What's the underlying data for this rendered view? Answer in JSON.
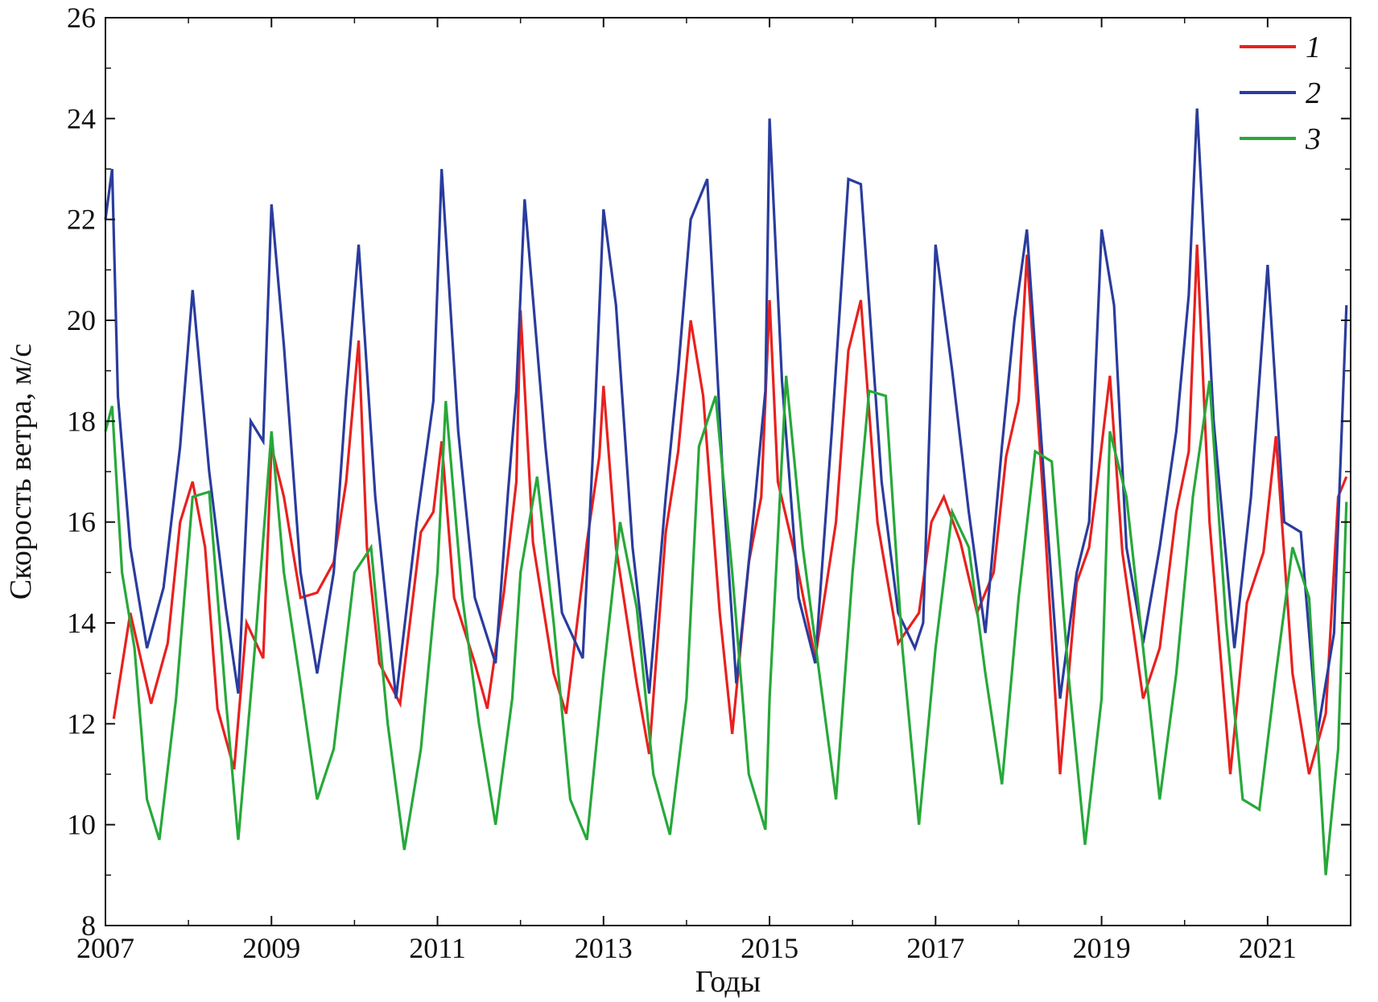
{
  "chart_data": {
    "type": "line",
    "title": "",
    "xlabel": "Годы",
    "ylabel": "Скорость ветра, м/с",
    "xlim": [
      2007.0,
      2022.0
    ],
    "ylim": [
      8,
      26
    ],
    "x_ticks": [
      2007,
      2009,
      2011,
      2013,
      2015,
      2017,
      2019,
      2021
    ],
    "y_ticks": [
      8,
      10,
      12,
      14,
      16,
      18,
      20,
      22,
      24,
      26
    ],
    "grid": false,
    "legend_position": "top-right",
    "series": [
      {
        "name": "1",
        "color": "#e8211f",
        "x": [
          2007.1,
          2007.3,
          2007.55,
          2007.75,
          2007.9,
          2008.05,
          2008.2,
          2008.35,
          2008.55,
          2008.7,
          2008.9,
          2009.0,
          2009.15,
          2009.35,
          2009.55,
          2009.75,
          2009.9,
          2010.05,
          2010.15,
          2010.3,
          2010.55,
          2010.8,
          2010.95,
          2011.05,
          2011.2,
          2011.45,
          2011.6,
          2011.8,
          2011.95,
          2012.0,
          2012.15,
          2012.4,
          2012.55,
          2012.8,
          2012.95,
          2013.0,
          2013.15,
          2013.4,
          2013.55,
          2013.75,
          2013.9,
          2014.05,
          2014.2,
          2014.4,
          2014.55,
          2014.75,
          2014.9,
          2015.0,
          2015.1,
          2015.3,
          2015.55,
          2015.8,
          2015.95,
          2016.1,
          2016.3,
          2016.55,
          2016.8,
          2016.95,
          2017.1,
          2017.3,
          2017.5,
          2017.7,
          2017.85,
          2018.0,
          2018.1,
          2018.3,
          2018.5,
          2018.7,
          2018.85,
          2018.95,
          2019.1,
          2019.25,
          2019.5,
          2019.7,
          2019.9,
          2020.05,
          2020.15,
          2020.3,
          2020.55,
          2020.75,
          2020.95,
          2021.1,
          2021.3,
          2021.5,
          2021.7,
          2021.85,
          2021.95
        ],
        "y": [
          12.1,
          14.2,
          12.4,
          13.6,
          16.0,
          16.8,
          15.5,
          12.3,
          11.1,
          14.0,
          13.3,
          17.5,
          16.5,
          14.5,
          14.6,
          15.2,
          16.8,
          19.6,
          15.5,
          13.2,
          12.4,
          15.8,
          16.2,
          17.6,
          14.5,
          13.2,
          12.3,
          14.6,
          16.8,
          20.2,
          15.6,
          13.0,
          12.2,
          15.6,
          17.3,
          18.7,
          15.5,
          12.8,
          11.4,
          15.8,
          17.4,
          20.0,
          18.5,
          14.2,
          11.8,
          15.2,
          16.5,
          20.4,
          16.8,
          15.4,
          13.3,
          16.0,
          19.4,
          20.4,
          16.0,
          13.6,
          14.2,
          16.0,
          16.5,
          15.6,
          14.2,
          15.0,
          17.3,
          18.4,
          21.3,
          16.4,
          11.0,
          14.8,
          15.5,
          16.8,
          18.9,
          15.4,
          12.5,
          13.5,
          16.2,
          17.4,
          21.5,
          16.0,
          11.0,
          14.4,
          15.4,
          17.7,
          13.0,
          11.0,
          12.2,
          16.5,
          16.9
        ]
      },
      {
        "name": "2",
        "color": "#2a3c9d",
        "x": [
          2007.0,
          2007.08,
          2007.15,
          2007.3,
          2007.5,
          2007.7,
          2007.9,
          2008.05,
          2008.25,
          2008.45,
          2008.6,
          2008.75,
          2008.9,
          2009.0,
          2009.15,
          2009.35,
          2009.55,
          2009.75,
          2009.9,
          2010.05,
          2010.25,
          2010.5,
          2010.75,
          2010.95,
          2011.05,
          2011.25,
          2011.45,
          2011.7,
          2011.85,
          2011.95,
          2012.05,
          2012.3,
          2012.5,
          2012.75,
          2012.9,
          2013.0,
          2013.15,
          2013.35,
          2013.55,
          2013.75,
          2013.9,
          2014.05,
          2014.25,
          2014.45,
          2014.6,
          2014.8,
          2014.95,
          2015.0,
          2015.15,
          2015.35,
          2015.55,
          2015.75,
          2015.95,
          2016.1,
          2016.35,
          2016.55,
          2016.75,
          2016.85,
          2017.0,
          2017.2,
          2017.4,
          2017.6,
          2017.8,
          2017.95,
          2018.1,
          2018.3,
          2018.5,
          2018.7,
          2018.85,
          2019.0,
          2019.15,
          2019.3,
          2019.5,
          2019.7,
          2019.9,
          2020.05,
          2020.15,
          2020.35,
          2020.6,
          2020.8,
          2021.0,
          2021.2,
          2021.4,
          2021.6,
          2021.8,
          2021.95
        ],
        "y": [
          22.0,
          23.0,
          18.5,
          15.5,
          13.5,
          14.7,
          17.5,
          20.6,
          17.0,
          14.3,
          12.6,
          18.0,
          17.6,
          22.3,
          19.5,
          15.0,
          13.0,
          15.0,
          18.5,
          21.5,
          16.5,
          12.5,
          16.0,
          18.4,
          23.0,
          17.8,
          14.5,
          13.2,
          16.6,
          18.6,
          22.4,
          17.5,
          14.2,
          13.3,
          18.3,
          22.2,
          20.3,
          15.5,
          12.6,
          16.5,
          19.0,
          22.0,
          22.8,
          16.5,
          12.8,
          16.0,
          18.6,
          24.0,
          18.8,
          14.5,
          13.2,
          17.8,
          22.8,
          22.7,
          16.8,
          14.2,
          13.5,
          14.0,
          21.5,
          19.0,
          16.2,
          13.8,
          17.5,
          20.0,
          21.8,
          17.0,
          12.5,
          15.0,
          16.0,
          21.8,
          20.3,
          15.5,
          13.6,
          15.5,
          17.8,
          20.5,
          24.2,
          18.0,
          13.5,
          16.5,
          21.1,
          16.0,
          15.8,
          11.8,
          13.8,
          20.3
        ]
      },
      {
        "name": "3",
        "color": "#27a83a",
        "x": [
          2007.0,
          2007.08,
          2007.2,
          2007.35,
          2007.5,
          2007.65,
          2007.85,
          2008.05,
          2008.25,
          2008.45,
          2008.6,
          2008.8,
          2009.0,
          2009.15,
          2009.35,
          2009.55,
          2009.75,
          2010.0,
          2010.2,
          2010.4,
          2010.6,
          2010.8,
          2011.0,
          2011.1,
          2011.3,
          2011.5,
          2011.7,
          2011.9,
          2012.0,
          2012.2,
          2012.4,
          2012.6,
          2012.8,
          2013.0,
          2013.2,
          2013.4,
          2013.6,
          2013.8,
          2014.0,
          2014.15,
          2014.35,
          2014.55,
          2014.75,
          2014.95,
          2015.0,
          2015.2,
          2015.4,
          2015.6,
          2015.8,
          2016.0,
          2016.2,
          2016.4,
          2016.6,
          2016.8,
          2017.0,
          2017.2,
          2017.4,
          2017.6,
          2017.8,
          2018.0,
          2018.2,
          2018.4,
          2018.6,
          2018.8,
          2019.0,
          2019.1,
          2019.3,
          2019.5,
          2019.7,
          2019.9,
          2020.1,
          2020.3,
          2020.5,
          2020.7,
          2020.9,
          2021.1,
          2021.3,
          2021.5,
          2021.7,
          2021.85,
          2021.95
        ],
        "y": [
          17.8,
          18.3,
          15.0,
          13.5,
          10.5,
          9.7,
          12.5,
          16.5,
          16.6,
          12.5,
          9.7,
          13.5,
          17.8,
          15.0,
          12.8,
          10.5,
          11.5,
          15.0,
          15.5,
          12.0,
          9.5,
          11.5,
          15.0,
          18.4,
          14.5,
          12.0,
          10.0,
          12.5,
          15.0,
          16.9,
          14.0,
          10.5,
          9.7,
          13.0,
          16.0,
          14.3,
          11.0,
          9.8,
          12.5,
          17.5,
          18.5,
          15.0,
          11.0,
          9.9,
          12.5,
          18.9,
          15.5,
          13.0,
          10.5,
          15.0,
          18.6,
          18.5,
          13.5,
          10.0,
          13.5,
          16.2,
          15.5,
          13.0,
          10.8,
          14.5,
          17.4,
          17.2,
          13.0,
          9.6,
          12.5,
          17.8,
          16.5,
          13.5,
          10.5,
          13.0,
          16.5,
          18.8,
          14.0,
          10.5,
          10.3,
          13.0,
          15.5,
          14.5,
          9.0,
          11.5,
          16.4
        ]
      }
    ]
  }
}
